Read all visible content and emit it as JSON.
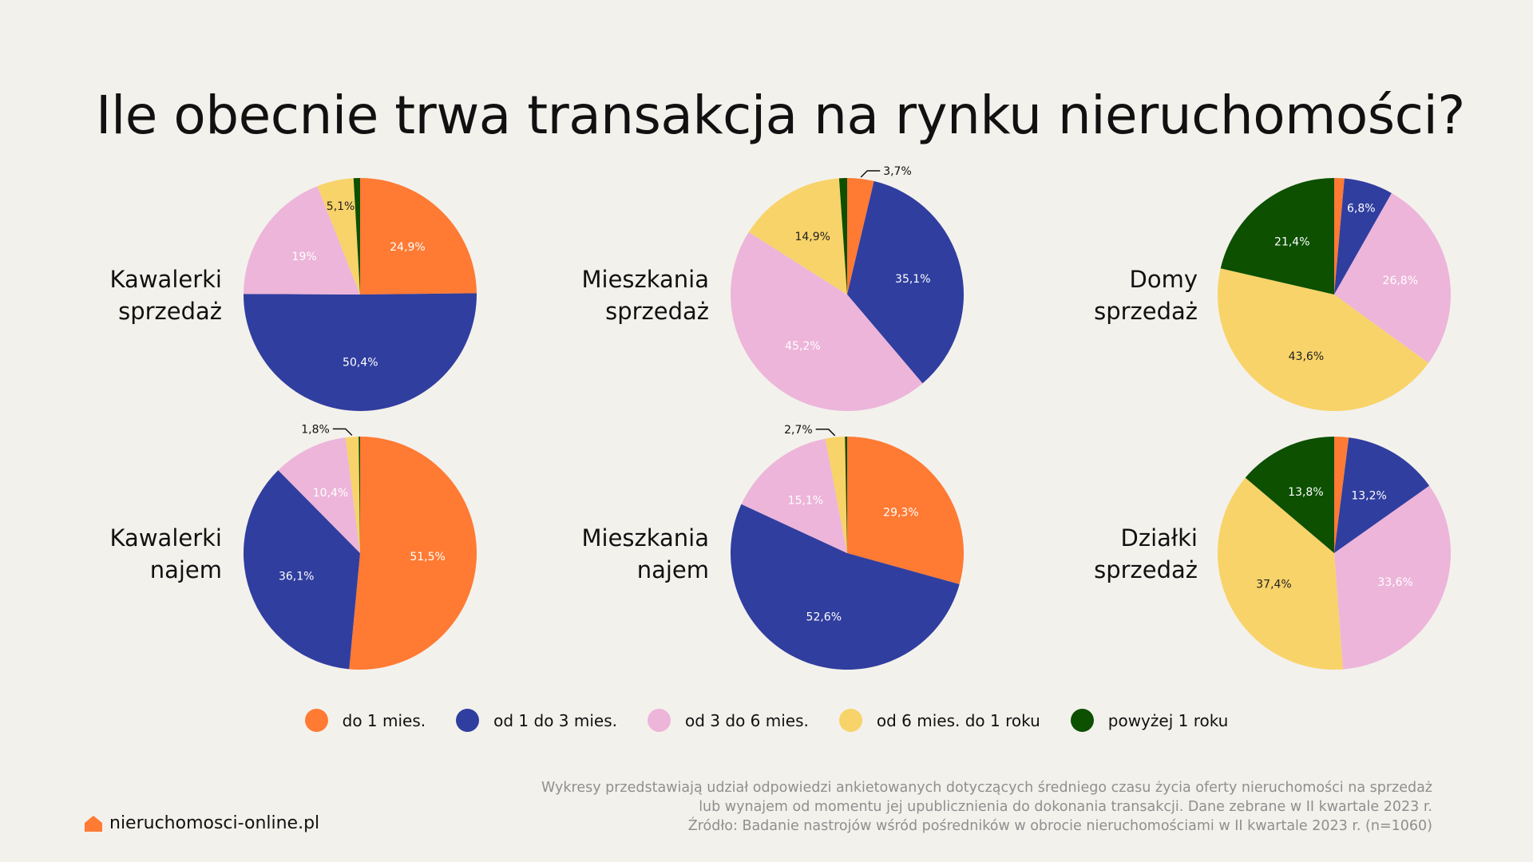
{
  "title": "Ile obecnie trwa transakcja na rynku nieruchomości?",
  "legend": [
    {
      "label": "do 1 mies.",
      "color": "#ff7a33"
    },
    {
      "label": "od 1 do 3 mies.",
      "color": "#303e9f"
    },
    {
      "label": "od 3 do 6 mies.",
      "color": "#edb5da"
    },
    {
      "label": "od 6 mies. do 1 roku",
      "color": "#f8d369"
    },
    {
      "label": "powyżej 1 roku",
      "color": "#0c5000"
    }
  ],
  "chart_data": [
    {
      "type": "pie",
      "title_lines": [
        "Kawalerki",
        "sprzedaż"
      ],
      "categories": [
        "do 1 mies.",
        "od 1 do 3 mies.",
        "od 3 do 6 mies.",
        "od 6 mies. do 1 roku",
        "powyżej 1 roku"
      ],
      "values": [
        24.9,
        50.4,
        19.0,
        5.1,
        0.9
      ],
      "data_labels": [
        "24,9%",
        "50,4%",
        "19%",
        "5,1%",
        ""
      ]
    },
    {
      "type": "pie",
      "title_lines": [
        "Mieszkania",
        "sprzedaż"
      ],
      "categories": [
        "do 1 mies.",
        "od 1 do 3 mies.",
        "od 3 do 6 mies.",
        "od 6 mies. do 1 roku",
        "powyżej 1 roku"
      ],
      "values": [
        3.7,
        35.1,
        45.2,
        14.9,
        1.1
      ],
      "data_labels": [
        "3,7%",
        "35,1%",
        "45,2%",
        "14,9%",
        ""
      ]
    },
    {
      "type": "pie",
      "title_lines": [
        "Domy",
        "sprzedaż"
      ],
      "categories": [
        "do 1 mies.",
        "od 1 do 3 mies.",
        "od 3 do 6 mies.",
        "od 6 mies. do 1 roku",
        "powyżej 1 roku"
      ],
      "values": [
        1.4,
        6.8,
        26.8,
        43.6,
        21.4
      ],
      "data_labels": [
        "",
        "6,8%",
        "26,8%",
        "43,6%",
        "21,4%"
      ]
    },
    {
      "type": "pie",
      "title_lines": [
        "Kawalerki",
        "najem"
      ],
      "categories": [
        "do 1 mies.",
        "od 1 do 3 mies.",
        "od 3 do 6 mies.",
        "od 6 mies. do 1 roku",
        "powyżej 1 roku"
      ],
      "values": [
        51.5,
        36.1,
        10.4,
        1.8,
        0.2
      ],
      "data_labels": [
        "51,5%",
        "36,1%",
        "10,4%",
        "1,8%",
        ""
      ]
    },
    {
      "type": "pie",
      "title_lines": [
        "Mieszkania",
        "najem"
      ],
      "categories": [
        "do 1 mies.",
        "od 1 do 3 mies.",
        "od 3 do 6 mies.",
        "od 6 mies. do 1 roku",
        "powyżej 1 roku"
      ],
      "values": [
        29.3,
        52.6,
        15.1,
        2.7,
        0.3
      ],
      "data_labels": [
        "29,3%",
        "52,6%",
        "15,1%",
        "2,7%",
        ""
      ]
    },
    {
      "type": "pie",
      "title_lines": [
        "Działki",
        "sprzedaż"
      ],
      "categories": [
        "do 1 mies.",
        "od 1 do 3 mies.",
        "od 3 do 6 mies.",
        "od 6 mies. do 1 roku",
        "powyżej 1 roku"
      ],
      "values": [
        2.0,
        13.2,
        33.6,
        37.4,
        13.8
      ],
      "data_labels": [
        "",
        "13,2%",
        "33,6%",
        "37,4%",
        "13,8%"
      ]
    }
  ],
  "footnote": [
    "Wykresy przedstawiają udział odpowiedzi ankietowanych dotyczących średniego czasu życia oferty nieruchomości na sprzedaż",
    "lub wynajem od momentu jej upublicznienia do dokonania transakcji. Dane zebrane w II kwartale 2023 r.",
    "Źródło: Badanie nastrojów wśród pośredników w obrocie nieruchomościami w II kwartale 2023 r. (n=1060)"
  ],
  "brand": {
    "name": "nieruchomosci-online.pl",
    "icon": "house-icon",
    "color": "#ff7a33"
  }
}
